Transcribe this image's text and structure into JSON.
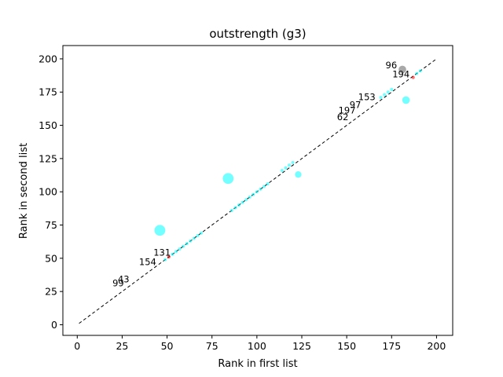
{
  "chart_data": {
    "type": "scatter",
    "title": "outstrength (g3)",
    "xlabel": "Rank in first list",
    "ylabel": "Rank in second list",
    "xlim": [
      -8,
      209
    ],
    "ylim": [
      -8,
      210
    ],
    "xticks": [
      0,
      25,
      50,
      75,
      100,
      125,
      150,
      175,
      200
    ],
    "yticks": [
      0,
      25,
      50,
      75,
      100,
      125,
      150,
      175,
      200
    ],
    "grid": false,
    "diagonal": {
      "from": [
        1,
        1
      ],
      "to": [
        200,
        200
      ],
      "style": "dashed",
      "color": "#000000"
    },
    "colors": {
      "cyan": "#00ffff",
      "gray": "#606060",
      "red": "#ff0000"
    },
    "points": [
      {
        "x": 46,
        "y": 71,
        "size": 10,
        "color": "cyan"
      },
      {
        "x": 84,
        "y": 110,
        "size": 10,
        "color": "cyan"
      },
      {
        "x": 123,
        "y": 113,
        "size": 6,
        "color": "cyan"
      },
      {
        "x": 183,
        "y": 169,
        "size": 7,
        "color": "cyan"
      },
      {
        "x": 181,
        "y": 192,
        "size": 7,
        "color": "gray"
      },
      {
        "x": 187,
        "y": 186,
        "size": 3,
        "color": "red"
      },
      {
        "x": 51,
        "y": 51,
        "size": 3,
        "color": "red"
      },
      {
        "x": 49,
        "y": 49,
        "size": 3,
        "color": "cyan"
      },
      {
        "x": 53,
        "y": 53,
        "size": 3,
        "color": "cyan"
      },
      {
        "x": 55,
        "y": 55,
        "size": 3,
        "color": "cyan"
      },
      {
        "x": 57,
        "y": 57,
        "size": 3,
        "color": "cyan"
      },
      {
        "x": 59,
        "y": 59,
        "size": 3,
        "color": "cyan"
      },
      {
        "x": 61,
        "y": 61,
        "size": 3,
        "color": "cyan"
      },
      {
        "x": 63,
        "y": 63,
        "size": 3,
        "color": "cyan"
      },
      {
        "x": 65,
        "y": 65,
        "size": 3,
        "color": "cyan"
      },
      {
        "x": 67,
        "y": 67,
        "size": 3,
        "color": "cyan"
      },
      {
        "x": 69,
        "y": 69,
        "size": 3,
        "color": "cyan"
      },
      {
        "x": 86,
        "y": 86,
        "size": 3,
        "color": "cyan"
      },
      {
        "x": 88,
        "y": 88,
        "size": 3,
        "color": "cyan"
      },
      {
        "x": 90,
        "y": 90,
        "size": 3,
        "color": "cyan"
      },
      {
        "x": 92,
        "y": 92,
        "size": 3,
        "color": "cyan"
      },
      {
        "x": 94,
        "y": 94,
        "size": 3,
        "color": "cyan"
      },
      {
        "x": 96,
        "y": 96,
        "size": 3,
        "color": "cyan"
      },
      {
        "x": 98,
        "y": 98,
        "size": 3,
        "color": "cyan"
      },
      {
        "x": 100,
        "y": 100,
        "size": 3,
        "color": "cyan"
      },
      {
        "x": 102,
        "y": 102,
        "size": 3,
        "color": "cyan"
      },
      {
        "x": 104,
        "y": 104,
        "size": 3,
        "color": "cyan"
      },
      {
        "x": 106,
        "y": 106,
        "size": 3,
        "color": "cyan"
      },
      {
        "x": 114,
        "y": 116,
        "size": 3,
        "color": "cyan"
      },
      {
        "x": 116,
        "y": 118,
        "size": 3,
        "color": "cyan"
      },
      {
        "x": 118,
        "y": 120,
        "size": 3,
        "color": "cyan"
      },
      {
        "x": 120,
        "y": 122,
        "size": 3,
        "color": "cyan"
      },
      {
        "x": 169,
        "y": 171,
        "size": 3,
        "color": "cyan"
      },
      {
        "x": 171,
        "y": 173,
        "size": 3,
        "color": "cyan"
      },
      {
        "x": 173,
        "y": 175,
        "size": 3,
        "color": "cyan"
      },
      {
        "x": 175,
        "y": 177,
        "size": 3,
        "color": "cyan"
      },
      {
        "x": 189,
        "y": 189,
        "size": 3,
        "color": "cyan"
      },
      {
        "x": 191,
        "y": 191,
        "size": 3,
        "color": "cyan"
      }
    ],
    "annotations": [
      {
        "text": "96",
        "x": 178,
        "y": 193
      },
      {
        "text": "194",
        "x": 185,
        "y": 186
      },
      {
        "text": "153",
        "x": 166,
        "y": 169
      },
      {
        "text": "197",
        "x": 155,
        "y": 159
      },
      {
        "text": "97",
        "x": 158,
        "y": 163
      },
      {
        "text": "62",
        "x": 151,
        "y": 154
      },
      {
        "text": "131",
        "x": 52,
        "y": 52
      },
      {
        "text": "154",
        "x": 44,
        "y": 45
      },
      {
        "text": "43",
        "x": 29,
        "y": 32
      },
      {
        "text": "99",
        "x": 26,
        "y": 29
      }
    ]
  }
}
